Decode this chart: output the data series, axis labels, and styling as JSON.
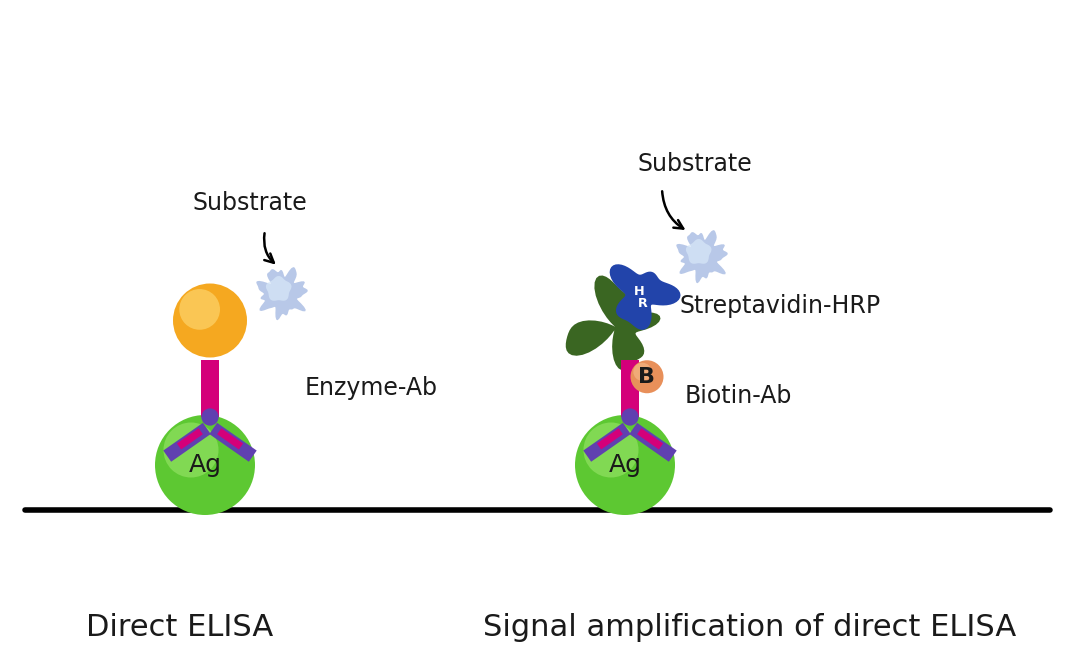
{
  "bg_color": "#ffffff",
  "title_left": "Direct ELISA",
  "title_right": "Signal amplification of direct ELISA",
  "label_substrate_left": "Substrate",
  "label_enzyme_ab": "Enzyme-Ab",
  "label_substrate_right": "Substrate",
  "label_streptavidin": "Streptavidin-HRP",
  "label_biotin_ab": "Biotin-Ab",
  "label_ag_left": "Ag",
  "label_ag_right": "Ag",
  "label_b": "B",
  "color_ag": "#5dc832",
  "color_enzyme": "#f5a820",
  "color_ab_magenta": "#d4007a",
  "color_ab_purple": "#6040b0",
  "color_substrate": "#b8c8e8",
  "color_substrate_dark": "#9aaad0",
  "color_hrp_blue": "#2244aa",
  "color_hrp_green": "#3a6622",
  "color_biotin": "#e8905a",
  "text_color": "#1a1a1a",
  "font_size_labels": 17,
  "font_size_titles": 22,
  "font_size_ag": 18,
  "font_size_b": 16
}
